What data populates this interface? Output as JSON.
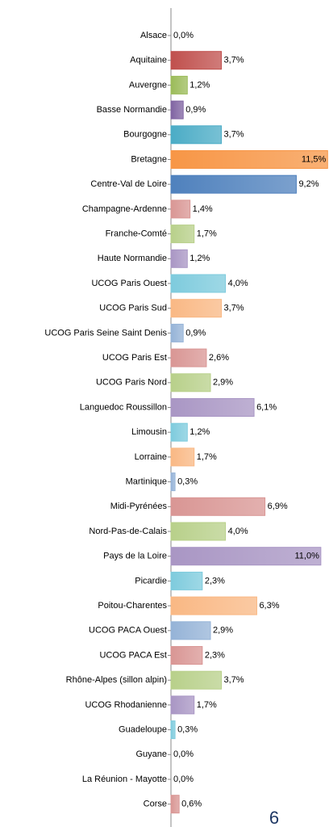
{
  "chart_data": {
    "type": "bar",
    "orientation": "horizontal",
    "categories": [
      "Alsace",
      "Aquitaine",
      "Auvergne",
      "Basse Normandie",
      "Bourgogne",
      "Bretagne",
      "Centre-Val de Loire",
      "Champagne-Ardenne",
      "Franche-Comté",
      "Haute Normandie",
      "UCOG  Paris Ouest",
      "UCOG  Paris Sud",
      "UCOG Paris Seine Saint Denis",
      "UCOG Paris Est",
      "UCOG Paris Nord",
      "Languedoc Roussillon",
      "Limousin",
      "Lorraine",
      "Martinique",
      "Midi-Pyrénées",
      "Nord-Pas-de-Calais",
      "Pays de la Loire",
      "Picardie",
      "Poitou-Charentes",
      "UCOG PACA Ouest",
      "UCOG PACA Est",
      "Rhône-Alpes (sillon alpin)",
      "UCOG Rhodanienne",
      "Guadeloupe",
      "Guyane",
      "La Réunion - Mayotte",
      "Corse"
    ],
    "values": [
      0.0,
      3.7,
      1.2,
      0.9,
      3.7,
      11.5,
      9.2,
      1.4,
      1.7,
      1.2,
      4.0,
      3.7,
      0.9,
      2.6,
      2.9,
      6.1,
      1.2,
      1.7,
      0.3,
      6.9,
      4.0,
      11.0,
      2.3,
      6.3,
      2.9,
      2.3,
      3.7,
      1.7,
      0.3,
      0.0,
      0.0,
      0.6
    ],
    "value_labels": [
      "0,0%",
      "3,7%",
      "1,2%",
      "0,9%",
      "3,7%",
      "11,5%",
      "9,2%",
      "1,4%",
      "1,7%",
      "1,2%",
      "4,0%",
      "3,7%",
      "0,9%",
      "2,6%",
      "2,9%",
      "6,1%",
      "1,2%",
      "1,7%",
      "0,3%",
      "6,9%",
      "4,0%",
      "11,0%",
      "2,3%",
      "6,3%",
      "2,9%",
      "2,3%",
      "3,7%",
      "1,7%",
      "0,3%",
      "0,0%",
      "0,0%",
      "0,6%"
    ],
    "colors": [
      "#c0504d",
      "#c0504d",
      "#9bbb59",
      "#8064a2",
      "#4bacc6",
      "#f79646",
      "#4f81bd",
      "#d99694",
      "#b8d08a",
      "#a996c4",
      "#7ecbdd",
      "#f9b884",
      "#95b3d7",
      "#d99694",
      "#b8d08a",
      "#a996c4",
      "#7ecbdd",
      "#f9b884",
      "#95b3d7",
      "#d99694",
      "#b8d08a",
      "#a996c4",
      "#7ecbdd",
      "#f9b884",
      "#95b3d7",
      "#d99694",
      "#b8d08a",
      "#a996c4",
      "#7ecbdd",
      "#f9b884",
      "#95b3d7",
      "#d99694"
    ],
    "xlim": [
      0,
      11.6
    ]
  },
  "page_number": "6"
}
